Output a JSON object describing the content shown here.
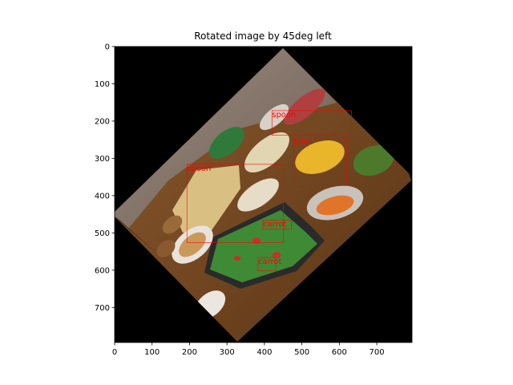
{
  "chart_data": {
    "type": "image",
    "title": "Rotated image by 45deg left",
    "xlim": [
      0,
      794
    ],
    "ylim": [
      794,
      0
    ],
    "x_ticks": [
      0,
      100,
      200,
      300,
      400,
      500,
      600,
      700
    ],
    "y_ticks": [
      0,
      100,
      200,
      300,
      400,
      500,
      600,
      700
    ],
    "grid": false,
    "rotation_deg": 45,
    "background_color": "#000000",
    "box_color": "#ff0000",
    "detections": [
      {
        "label": "spoon",
        "x0": 420,
        "y0": 172,
        "x1": 632,
        "y1": 238
      },
      {
        "label": "bowl",
        "x0": 478,
        "y0": 245,
        "x1": 619,
        "y1": 373
      },
      {
        "label": "spoon",
        "x0": 193,
        "y0": 316,
        "x1": 451,
        "y1": 526
      },
      {
        "label": "carrot",
        "x0": 396,
        "y0": 466,
        "x1": 472,
        "y1": 490
      },
      {
        "label": "carrot",
        "x0": 383,
        "y0": 566,
        "x1": 430,
        "y1": 602
      }
    ]
  }
}
